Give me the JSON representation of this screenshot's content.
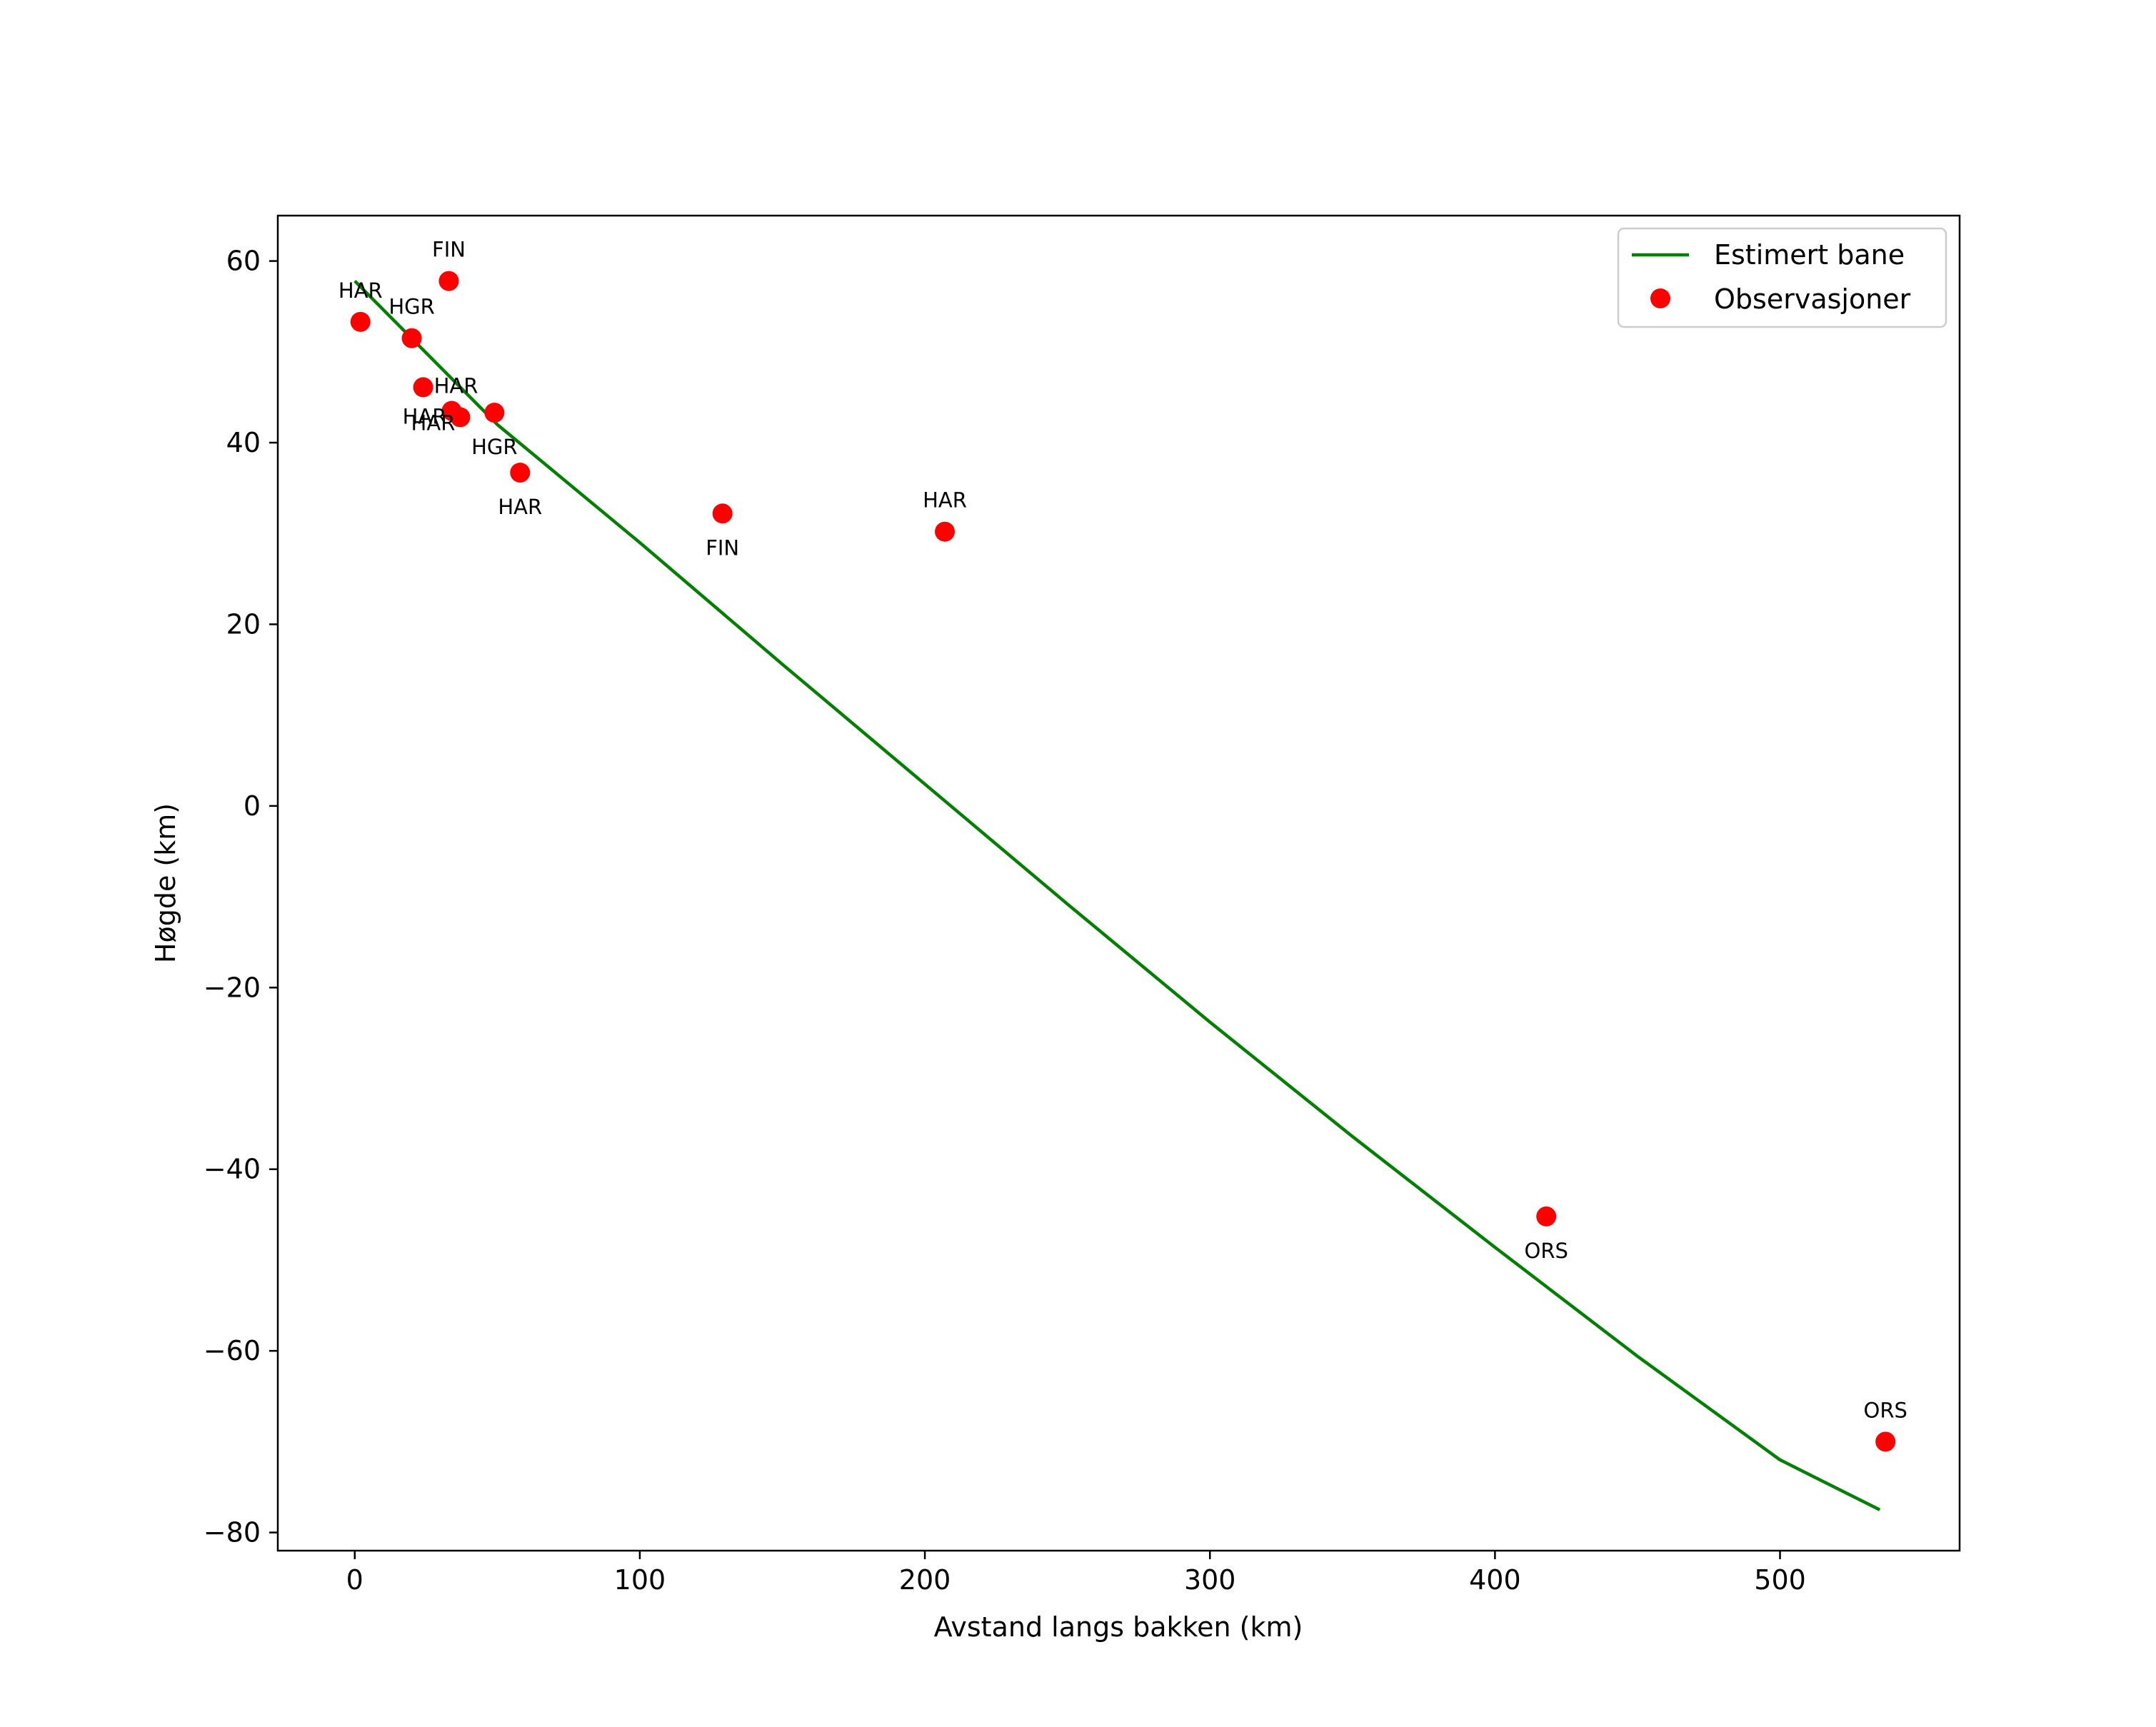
{
  "chart_data": {
    "type": "scatter",
    "title": "",
    "xlabel": "Avstand langs bakken (km)",
    "ylabel": "Høgde (km)",
    "xlim": [
      -27,
      563
    ],
    "ylim": [
      -82,
      65
    ],
    "xticks": [
      0,
      100,
      200,
      300,
      400,
      500
    ],
    "yticks": [
      60,
      40,
      20,
      0,
      -20,
      -40,
      -60,
      -80
    ],
    "xtick_labels": [
      "0",
      "100",
      "200",
      "300",
      "400",
      "500"
    ],
    "ytick_labels": [
      "60",
      "40",
      "20",
      "0",
      "−20",
      "−40",
      "−60",
      "−80"
    ],
    "grid": false,
    "legend_position": "upper-right",
    "series": [
      {
        "name": "Estimert bane",
        "kind": "line",
        "color": "#007f00",
        "x": [
          0,
          50,
          100,
          150,
          200,
          250,
          300,
          350,
          400,
          450,
          500,
          535
        ],
        "y": [
          57.8,
          42.0,
          29.0,
          15.6,
          2.4,
          -10.8,
          -23.8,
          -36.4,
          -48.6,
          -60.6,
          -72.0,
          -77.5
        ]
      },
      {
        "name": "Observasjoner",
        "kind": "scatter",
        "color": "#ff0000",
        "points": [
          {
            "x": 2,
            "y": 53.3,
            "label": "HAR",
            "label_pos": "above"
          },
          {
            "x": 20,
            "y": 51.5,
            "label": "HGR",
            "label_pos": "above"
          },
          {
            "x": 33,
            "y": 57.8,
            "label": "FIN",
            "label_pos": "above"
          },
          {
            "x": 24,
            "y": 46.1,
            "label": "HAR",
            "label_pos": "right"
          },
          {
            "x": 34,
            "y": 43.5,
            "label": "HAR",
            "label_pos": "below-left"
          },
          {
            "x": 37,
            "y": 42.8,
            "label": "HAR",
            "label_pos": "below-left"
          },
          {
            "x": 49,
            "y": 43.3,
            "label": "HGR",
            "label_pos": "below"
          },
          {
            "x": 58,
            "y": 36.7,
            "label": "HAR",
            "label_pos": "below"
          },
          {
            "x": 129,
            "y": 32.2,
            "label": "FIN",
            "label_pos": "below"
          },
          {
            "x": 207,
            "y": 30.2,
            "label": "HAR",
            "label_pos": "above"
          },
          {
            "x": 418,
            "y": -45.2,
            "label": "ORS",
            "label_pos": "below"
          },
          {
            "x": 537,
            "y": -70.0,
            "label": "ORS",
            "label_pos": "above"
          }
        ]
      }
    ]
  }
}
